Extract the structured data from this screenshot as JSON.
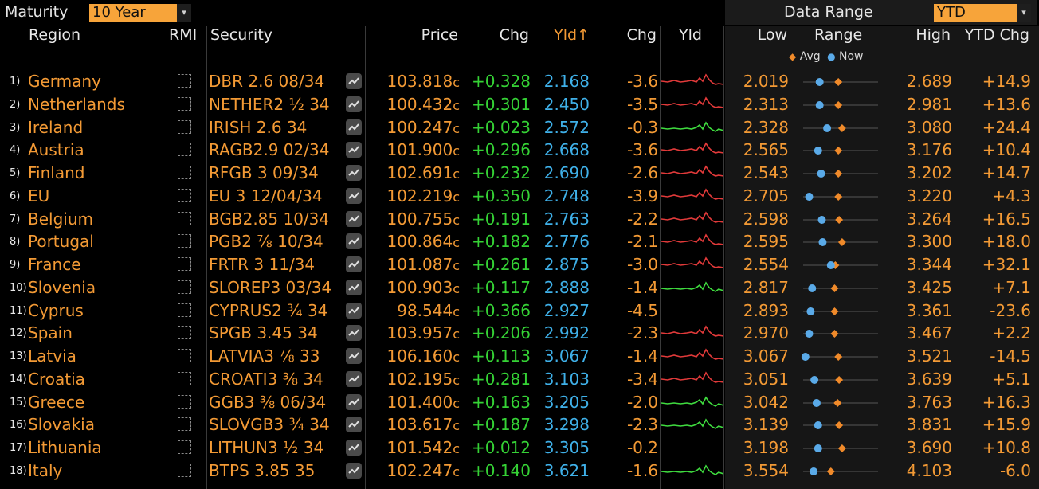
{
  "toolbar": {
    "maturity_label": "Maturity",
    "maturity_value": "10 Year",
    "data_range_label": "Data Range",
    "data_range_value": "YTD",
    "dropdown_arrow": "▾"
  },
  "columns": {
    "region": "Region",
    "rmi": "RMI",
    "security": "Security",
    "price": "Price",
    "chg": "Chg",
    "yld": "Yld↑",
    "yld_chg": "Chg",
    "yld_chart": "Yld",
    "low": "Low",
    "range": "Range",
    "high": "High",
    "ytd_chg": "YTD Chg"
  },
  "legend": {
    "avg": "Avg",
    "now": "Now"
  },
  "colors": {
    "accent": "#f39a35",
    "positive": "#35d235",
    "yield": "#3fb0e8",
    "avg_marker": "#f08a2a",
    "now_marker": "#5aaae8"
  },
  "rows": [
    {
      "n": "1)",
      "region": "Germany",
      "security": "DBR 2.6 08/34",
      "price": "103.818",
      "pc": "c",
      "chg": "+0.328",
      "yld": "2.168",
      "ychg": "-3.6",
      "low": "2.019",
      "high": "2.689",
      "ytd": "+14.9",
      "now": 0.22,
      "avg": 0.47,
      "spark": "red"
    },
    {
      "n": "2)",
      "region": "Netherlands",
      "security": "NETHER2 ½ 34",
      "price": "100.432",
      "pc": "c",
      "chg": "+0.301",
      "yld": "2.450",
      "ychg": "-3.5",
      "low": "2.313",
      "high": "2.981",
      "ytd": "+13.6",
      "now": 0.22,
      "avg": 0.47,
      "spark": "red"
    },
    {
      "n": "3)",
      "region": "Ireland",
      "security": "IRISH 2.6 34",
      "price": "100.247",
      "pc": "c",
      "chg": "+0.023",
      "yld": "2.572",
      "ychg": "-0.3",
      "low": "2.328",
      "high": "3.080",
      "ytd": "+24.4",
      "now": 0.32,
      "avg": 0.52,
      "spark": "green"
    },
    {
      "n": "4)",
      "region": "Austria",
      "security": "RAGB2.9 02/34",
      "price": "101.900",
      "pc": "c",
      "chg": "+0.296",
      "yld": "2.668",
      "ychg": "-3.6",
      "low": "2.565",
      "high": "3.176",
      "ytd": "+10.4",
      "now": 0.2,
      "avg": 0.47,
      "spark": "red"
    },
    {
      "n": "5)",
      "region": "Finland",
      "security": "RFGB 3 09/34",
      "price": "102.691",
      "pc": "c",
      "chg": "+0.232",
      "yld": "2.690",
      "ychg": "-2.6",
      "low": "2.543",
      "high": "3.202",
      "ytd": "+14.7",
      "now": 0.24,
      "avg": 0.47,
      "spark": "red"
    },
    {
      "n": "6)",
      "region": "EU",
      "security": "EU 3 12/04/34",
      "price": "102.219",
      "pc": "c",
      "chg": "+0.350",
      "yld": "2.748",
      "ychg": "-3.9",
      "low": "2.705",
      "high": "3.220",
      "ytd": "+4.3",
      "now": 0.08,
      "avg": 0.47,
      "spark": "red"
    },
    {
      "n": "7)",
      "region": "Belgium",
      "security": "BGB2.85 10/34",
      "price": "100.755",
      "pc": "c",
      "chg": "+0.191",
      "yld": "2.763",
      "ychg": "-2.2",
      "low": "2.598",
      "high": "3.264",
      "ytd": "+16.5",
      "now": 0.25,
      "avg": 0.48,
      "spark": "red"
    },
    {
      "n": "8)",
      "region": "Portugal",
      "security": "PGB2 ⅞ 10/34",
      "price": "100.864",
      "pc": "c",
      "chg": "+0.182",
      "yld": "2.776",
      "ychg": "-2.1",
      "low": "2.595",
      "high": "3.300",
      "ytd": "+18.0",
      "now": 0.26,
      "avg": 0.52,
      "spark": "red"
    },
    {
      "n": "9)",
      "region": "France",
      "security": "FRTR 3 11/34",
      "price": "101.087",
      "pc": "c",
      "chg": "+0.261",
      "yld": "2.875",
      "ychg": "-3.0",
      "low": "2.554",
      "high": "3.344",
      "ytd": "+32.1",
      "now": 0.37,
      "avg": 0.43,
      "spark": "red"
    },
    {
      "n": "10)",
      "region": "Slovenia",
      "security": "SLOREP3 03/34",
      "price": "100.903",
      "pc": "c",
      "chg": "+0.117",
      "yld": "2.888",
      "ychg": "-1.4",
      "low": "2.817",
      "high": "3.425",
      "ytd": "+7.1",
      "now": 0.12,
      "avg": 0.42,
      "spark": "green"
    },
    {
      "n": "11)",
      "region": "Cyprus",
      "security": "CYPRUS2 ¾ 34",
      "price": "98.544",
      "pc": "c",
      "chg": "+0.366",
      "yld": "2.927",
      "ychg": "-4.5",
      "low": "2.893",
      "high": "3.361",
      "ytd": "-23.6",
      "now": 0.1,
      "avg": 0.42,
      "spark": "none"
    },
    {
      "n": "12)",
      "region": "Spain",
      "security": "SPGB 3.45 34",
      "price": "103.957",
      "pc": "c",
      "chg": "+0.206",
      "yld": "2.992",
      "ychg": "-2.3",
      "low": "2.970",
      "high": "3.467",
      "ytd": "+2.2",
      "now": 0.08,
      "avg": 0.42,
      "spark": "red"
    },
    {
      "n": "13)",
      "region": "Latvia",
      "security": "LATVIA3 ⅞ 33",
      "price": "106.160",
      "pc": "c",
      "chg": "+0.113",
      "yld": "3.067",
      "ychg": "-1.4",
      "low": "3.067",
      "high": "3.521",
      "ytd": "-14.5",
      "now": 0.03,
      "avg": 0.47,
      "spark": "red"
    },
    {
      "n": "14)",
      "region": "Croatia",
      "security": "CROATI3 ⅜ 34",
      "price": "102.195",
      "pc": "c",
      "chg": "+0.281",
      "yld": "3.103",
      "ychg": "-3.4",
      "low": "3.051",
      "high": "3.639",
      "ytd": "+5.1",
      "now": 0.15,
      "avg": 0.48,
      "spark": "red"
    },
    {
      "n": "15)",
      "region": "Greece",
      "security": "GGB3 ⅜ 06/34",
      "price": "101.400",
      "pc": "c",
      "chg": "+0.163",
      "yld": "3.205",
      "ychg": "-2.0",
      "low": "3.042",
      "high": "3.763",
      "ytd": "+16.3",
      "now": 0.18,
      "avg": 0.46,
      "spark": "green"
    },
    {
      "n": "16)",
      "region": "Slovakia",
      "security": "SLOVGB3 ¾ 34",
      "price": "103.617",
      "pc": "c",
      "chg": "+0.187",
      "yld": "3.298",
      "ychg": "-2.3",
      "low": "3.139",
      "high": "3.831",
      "ytd": "+15.9",
      "now": 0.2,
      "avg": 0.48,
      "spark": "green"
    },
    {
      "n": "17)",
      "region": "Lithuania",
      "security": "LITHUN3 ½ 34",
      "price": "101.542",
      "pc": "c",
      "chg": "+0.012",
      "yld": "3.305",
      "ychg": "-0.2",
      "low": "3.198",
      "high": "3.690",
      "ytd": "+10.8",
      "now": 0.2,
      "avg": 0.52,
      "spark": "none"
    },
    {
      "n": "18)",
      "region": "Italy",
      "security": "BTPS 3.85 35",
      "price": "102.247",
      "pc": "c",
      "chg": "+0.140",
      "yld": "3.621",
      "ychg": "-1.6",
      "low": "3.554",
      "high": "4.103",
      "ytd": "-6.0",
      "now": 0.14,
      "avg": 0.37,
      "spark": "green"
    }
  ]
}
